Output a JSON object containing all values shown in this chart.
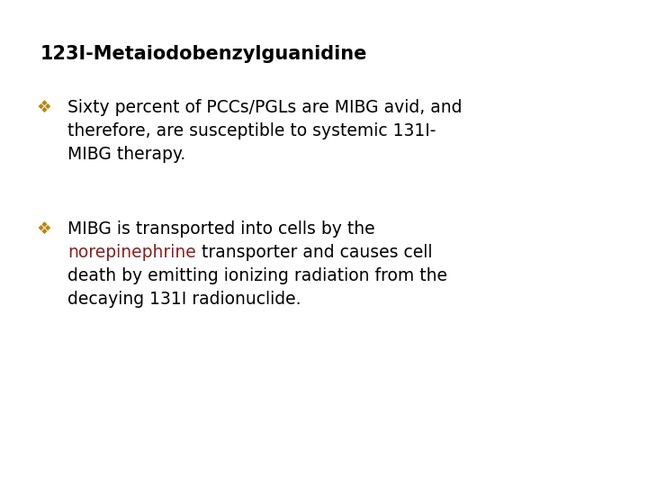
{
  "background_color": "#ffffff",
  "title": "123I-Metaiodobenzylguanidine",
  "title_fontsize": 15,
  "title_color": "#000000",
  "bullet_symbol": "❖",
  "bullet_color": "#b8860b",
  "text_color": "#000000",
  "highlight_color": "#8b2020",
  "font_family": "DejaVu Sans",
  "bullet1_lines": [
    "Sixty percent of PCCs/PGLs are MIBG avid, and",
    "therefore, are susceptible to systemic 131I-",
    "MIBG therapy."
  ],
  "bullet2_line1": "MIBG is transported into cells by the",
  "bullet2_highlight": "norepinephrine",
  "bullet2_rest": " transporter and causes cell",
  "bullet2_line3": "death by emitting ionizing radiation from the",
  "bullet2_line4": "decaying 131I radionuclide.",
  "figsize": [
    7.2,
    5.4
  ],
  "dpi": 100
}
